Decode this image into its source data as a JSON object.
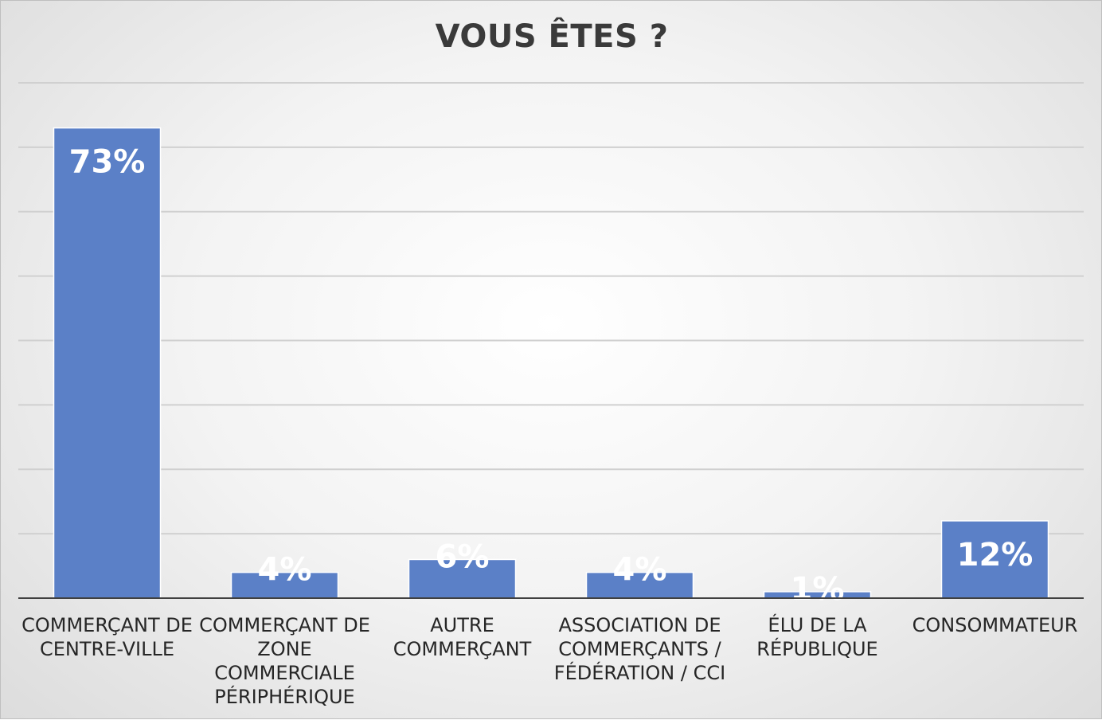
{
  "chart_data": {
    "type": "bar",
    "title": "VOUS ÊTES ?",
    "categories": [
      [
        "COMMERÇANT DE",
        "CENTRE-VILLE"
      ],
      [
        "COMMERÇANT DE",
        "ZONE",
        "COMMERCIALE",
        "PÉRIPHÉRIQUE"
      ],
      [
        "AUTRE",
        "COMMERÇANT"
      ],
      [
        "ASSOCIATION DE",
        "COMMERÇANTS /",
        "FÉDÉRATION / CCI"
      ],
      [
        "ÉLU DE LA",
        "RÉPUBLIQUE"
      ],
      [
        "CONSOMMATEUR"
      ]
    ],
    "values": [
      73,
      4,
      6,
      4,
      1,
      12
    ],
    "value_labels": [
      "73%",
      "4%",
      "6%",
      "4%",
      "1%",
      "12%"
    ],
    "ylim": [
      0,
      80
    ],
    "grid_step": 10,
    "grid": true,
    "legend": "none",
    "colors": {
      "bar": "#5b80c7",
      "grid": "#d0d0d0",
      "axis": "#404040",
      "label": "#262626"
    }
  }
}
